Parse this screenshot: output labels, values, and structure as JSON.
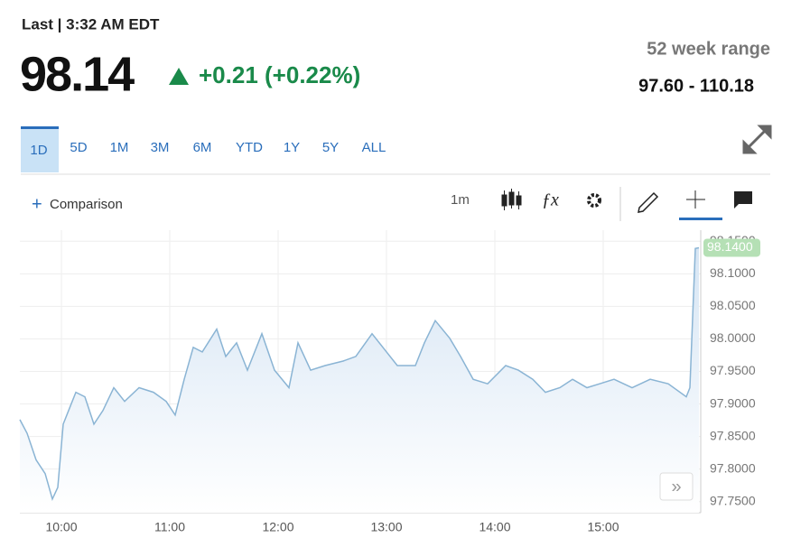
{
  "header": {
    "last": "Last | 3:32 AM EDT",
    "price": "98.14",
    "change": "+0.21 (+0.22%)",
    "range_label": "52 week range",
    "range": "97.60 - 110.18"
  },
  "tabs": [
    "1D",
    "5D",
    "1M",
    "3M",
    "6M",
    "YTD",
    "1Y",
    "5Y",
    "ALL"
  ],
  "toolbar": {
    "comparison": "Comparison",
    "interval": "1m"
  },
  "chart_data": {
    "type": "area",
    "x": [
      "09:37",
      "09:41",
      "09:46",
      "09:51",
      "09:55",
      "09:58",
      "10:01",
      "10:05",
      "10:08",
      "10:13",
      "10:18",
      "10:23",
      "10:29",
      "10:35",
      "10:43",
      "10:51",
      "10:58",
      "11:03",
      "11:08",
      "11:13",
      "11:18",
      "11:26",
      "11:31",
      "11:37",
      "11:43",
      "11:51",
      "11:58",
      "12:06",
      "12:11",
      "12:18",
      "12:26",
      "12:36",
      "12:43",
      "12:52",
      "12:58",
      "13:06",
      "13:16",
      "13:21",
      "13:27",
      "13:35",
      "13:41",
      "13:48",
      "13:56",
      "14:06",
      "14:13",
      "14:21",
      "14:28",
      "14:36",
      "14:43",
      "14:51",
      "14:58",
      "15:06",
      "15:16",
      "15:26",
      "15:36",
      "15:46",
      "15:48",
      "15:51",
      "15:53"
    ],
    "series": [
      {
        "color": "#8ab4d4",
        "values": [
          97.876,
          97.855,
          97.814,
          97.793,
          97.754,
          97.772,
          97.869,
          97.897,
          97.918,
          97.911,
          97.869,
          97.89,
          97.925,
          97.904,
          97.925,
          97.918,
          97.904,
          97.883,
          97.938,
          97.987,
          97.98,
          98.015,
          97.973,
          97.994,
          97.952,
          98.008,
          97.952,
          97.925,
          97.994,
          97.952,
          97.959,
          97.966,
          97.973,
          98.008,
          97.987,
          97.959,
          97.959,
          97.994,
          98.028,
          98.001,
          97.973,
          97.938,
          97.931,
          97.959,
          97.952,
          97.938,
          97.918,
          97.925,
          97.938,
          97.925,
          97.931,
          97.938,
          97.925,
          97.938,
          97.931,
          97.911,
          97.925,
          98.139,
          98.14
        ]
      }
    ],
    "xlim": [
      "09:37",
      "15:54"
    ],
    "xticks": [
      "10:00",
      "11:00",
      "12:00",
      "13:00",
      "14:00",
      "15:00"
    ],
    "ylim": [
      97.733,
      98.167
    ],
    "yticks": [
      {
        "value": 97.75,
        "label": "97.7500"
      },
      {
        "value": 97.8,
        "label": "97.8000"
      },
      {
        "value": 97.85,
        "label": "97.8500"
      },
      {
        "value": 97.9,
        "label": "97.9000"
      },
      {
        "value": 97.95,
        "label": "97.9500"
      },
      {
        "value": 98.0,
        "label": "98.0000"
      },
      {
        "value": 98.05,
        "label": "98.0500"
      },
      {
        "value": 98.1,
        "label": "98.1000"
      },
      {
        "value": 98.15,
        "label": "98.1500"
      }
    ],
    "price_marker": {
      "value": 98.14,
      "label": "98.1400",
      "color": "#b5e0b5"
    },
    "grid": true
  }
}
